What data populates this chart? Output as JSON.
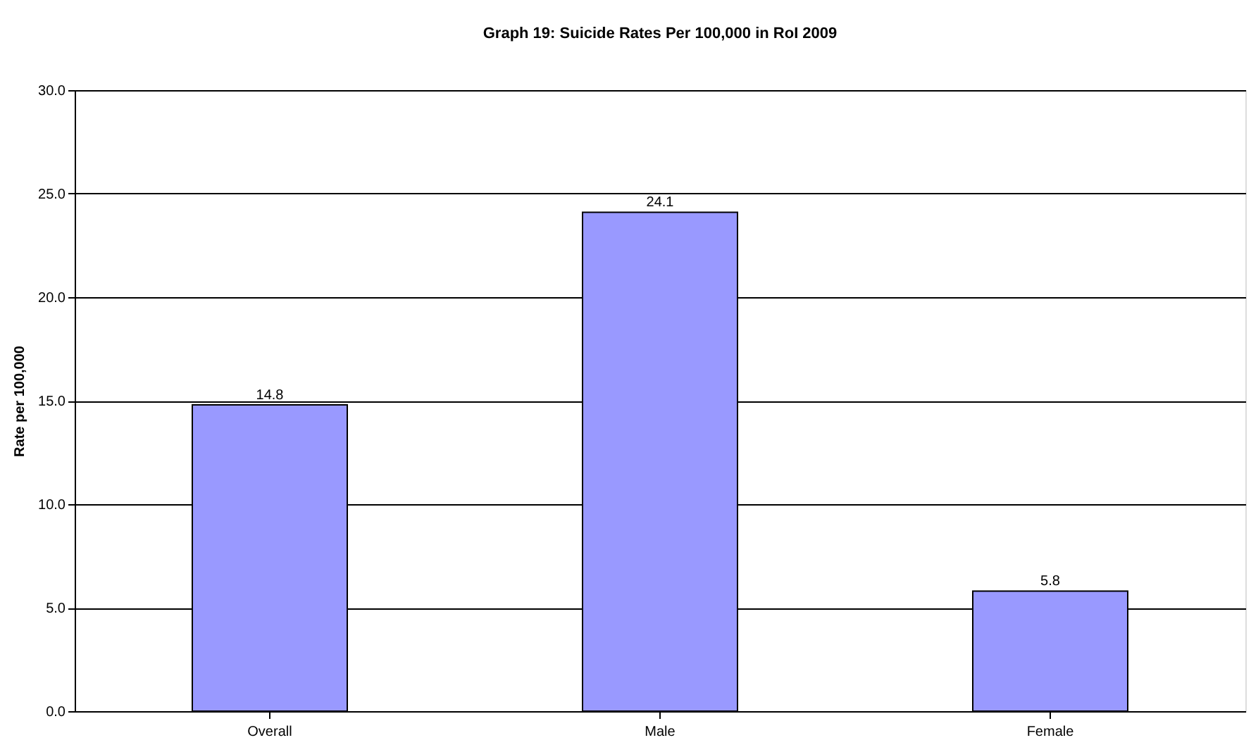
{
  "chart_data": {
    "type": "bar",
    "title": "Graph 19: Suicide Rates Per 100,000 in RoI 2009",
    "ylabel": "Rate per 100,000",
    "categories": [
      "Overall",
      "Male",
      "Female"
    ],
    "values": [
      14.8,
      24.1,
      5.8
    ],
    "color": "#9999ff",
    "ylim": [
      0,
      30
    ],
    "yticks": [
      {
        "value": 0,
        "label": "0.0"
      },
      {
        "value": 5,
        "label": "5.0"
      },
      {
        "value": 10,
        "label": "10.0"
      },
      {
        "value": 15,
        "label": "15.0"
      },
      {
        "value": 20,
        "label": "20.0"
      },
      {
        "value": 25,
        "label": "25.0"
      },
      {
        "value": 30,
        "label": "30.0"
      }
    ],
    "grid": "y",
    "data_labels": true
  }
}
